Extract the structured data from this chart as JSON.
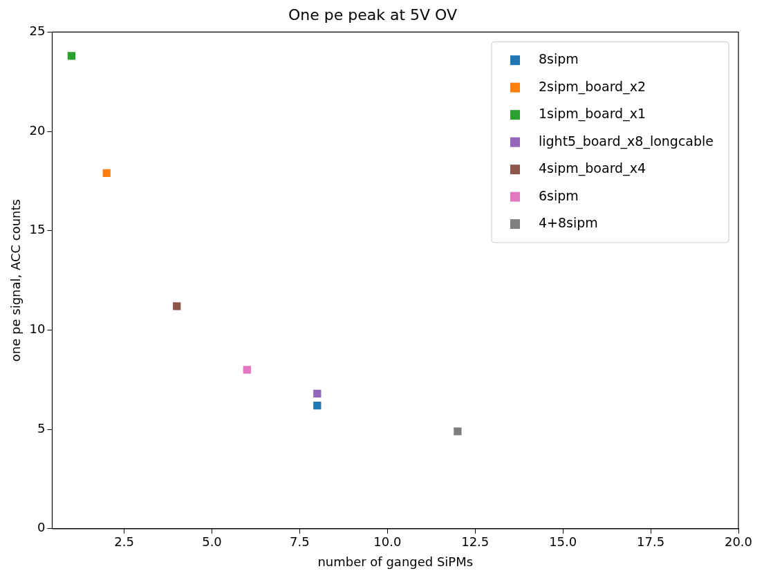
{
  "chart_data": {
    "type": "scatter",
    "title": "One pe peak at 5V OV",
    "xlabel": "number of ganged SiPMs",
    "ylabel": "one pe signal, ACC counts",
    "xlim": [
      0.45,
      20
    ],
    "xticks": [
      {
        "value": 2.5,
        "label": "2.5"
      },
      {
        "value": 5,
        "label": "5.0"
      },
      {
        "value": 7.5,
        "label": "7.5"
      },
      {
        "value": 10,
        "label": "10.0"
      },
      {
        "value": 12.5,
        "label": "12.5"
      },
      {
        "value": 15,
        "label": "15.0"
      },
      {
        "value": 17.5,
        "label": "17.5"
      },
      {
        "value": 20,
        "label": "20.0"
      }
    ],
    "ylim": [
      0,
      25
    ],
    "yticks": [
      0,
      5,
      10,
      15,
      20,
      25
    ],
    "marker": "square",
    "legend": "top right",
    "grid": false,
    "series": [
      {
        "name": "8sipm",
        "color": "#1f77b4",
        "x": [
          8
        ],
        "values": [
          6.2
        ]
      },
      {
        "name": "2sipm_board_x2",
        "color": "#ff7f0e",
        "x": [
          2
        ],
        "values": [
          17.9
        ]
      },
      {
        "name": "1sipm_board_x1",
        "color": "#2ca02c",
        "x": [
          1
        ],
        "values": [
          23.8
        ]
      },
      {
        "name": "light5_board_x8_longcable",
        "color": "#9467bd",
        "x": [
          8
        ],
        "values": [
          6.8
        ]
      },
      {
        "name": "4sipm_board_x4",
        "color": "#8c564b",
        "x": [
          4
        ],
        "values": [
          11.2
        ]
      },
      {
        "name": "6sipm",
        "color": "#e377c2",
        "x": [
          6
        ],
        "values": [
          8.0
        ]
      },
      {
        "name": "4+8sipm",
        "color": "#7f7f7f",
        "x": [
          12
        ],
        "values": [
          4.9
        ]
      }
    ]
  }
}
